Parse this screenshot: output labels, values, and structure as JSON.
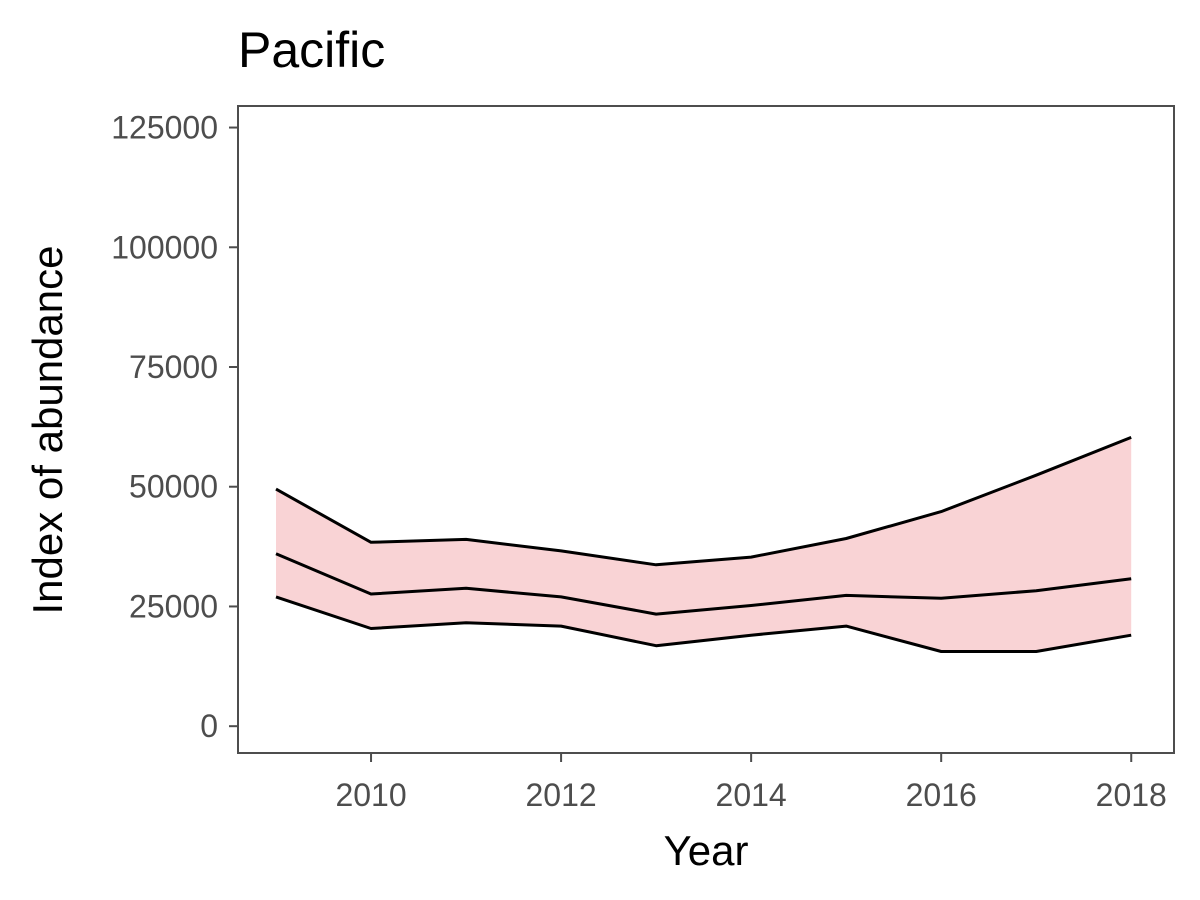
{
  "chart_data": {
    "type": "area",
    "title": "Pacific",
    "xlabel": "Year",
    "ylabel": "Index of abundance",
    "x": [
      2009,
      2010,
      2011,
      2012,
      2013,
      2014,
      2015,
      2016,
      2017,
      2018
    ],
    "xticks": [
      2010,
      2012,
      2014,
      2016,
      2018
    ],
    "yticks": [
      0,
      25000,
      50000,
      75000,
      100000,
      125000
    ],
    "xlim": [
      2008.6,
      2018.45
    ],
    "ylim": [
      -5600,
      129500
    ],
    "grid": false,
    "colors": {
      "band_fill": "#f9d3d5",
      "line": "#000000"
    },
    "series": [
      {
        "role": "upper",
        "values": [
          49500,
          38400,
          39000,
          36600,
          33700,
          35300,
          39200,
          44800,
          52400,
          60300
        ]
      },
      {
        "role": "estimate",
        "values": [
          36000,
          27600,
          28800,
          27000,
          23400,
          25200,
          27300,
          26700,
          28300,
          30800
        ]
      },
      {
        "role": "lower",
        "values": [
          27000,
          20400,
          21600,
          20900,
          16800,
          19000,
          20900,
          15600,
          15600,
          19000
        ]
      }
    ]
  }
}
